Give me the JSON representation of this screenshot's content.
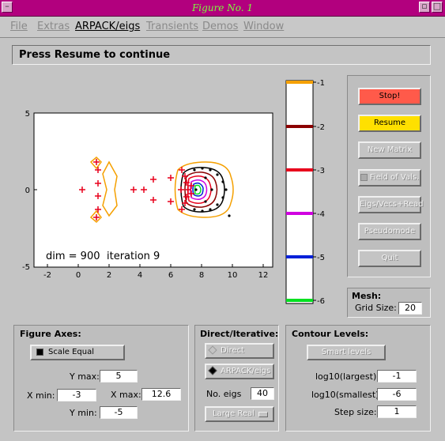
{
  "window": {
    "title": "Figure No. 1"
  },
  "menu": [
    "File",
    "Extras",
    "ARPACK/eigs",
    "Transients",
    "Demos",
    "Window"
  ],
  "status": "Press Resume to continue",
  "plot": {
    "annotation_dim": "dim = 900",
    "annotation_iter": "iteration 9",
    "x_ticks": [
      "-2",
      "0",
      "2",
      "4",
      "6",
      "8",
      "10",
      "12"
    ],
    "y_ticks": [
      "5",
      "0",
      "-5"
    ]
  },
  "colorbar": {
    "labels": [
      "-1",
      "-2",
      "-3",
      "-4",
      "-5",
      "-6"
    ],
    "colors": [
      "#f5a000",
      "#8b0000",
      "#e8001c",
      "#d000e0",
      "#0020d8",
      "#00e020"
    ]
  },
  "controls": {
    "stop": "Stop!",
    "resume": "Resume",
    "new_matrix": "New Matrix",
    "field_of_values": "Field of Vals.",
    "eigs_vecs": "Eigs/Vecs+Read",
    "pseudomode": "Pseudomode",
    "quit": "Quit"
  },
  "mesh": {
    "title": "Mesh:",
    "grid_label": "Grid Size:",
    "grid_value": "20"
  },
  "figure_axes": {
    "title": "Figure Axes:",
    "scale_equal": "Scale Equal",
    "ymax_label": "Y max:",
    "ymax": "5",
    "xmin_label": "X min:",
    "xmin": "-3",
    "xmax_label": "X max:",
    "xmax": "12.6",
    "ymin_label": "Y min:",
    "ymin": "-5"
  },
  "direct_iterative": {
    "title": "Direct/Iterative:",
    "direct": "Direct",
    "arpack": "ARPACK/eigs",
    "no_eigs_label": "No. eigs",
    "no_eigs": "40",
    "which": "Large Real"
  },
  "contour_levels": {
    "title": "Contour Levels:",
    "smart": "Smart levels",
    "largest_label": "log10(largest):",
    "largest": "-1",
    "smallest_label": "log10(smallest):",
    "smallest": "-6",
    "step_label": "Step size:",
    "step": "1"
  }
}
